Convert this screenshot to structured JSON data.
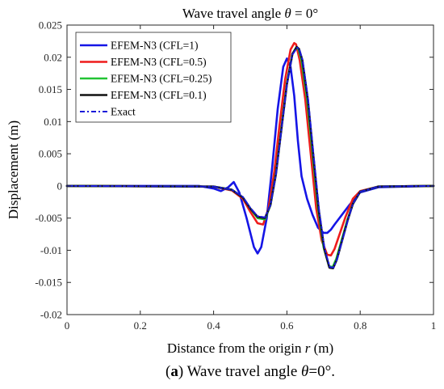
{
  "chart_data": {
    "type": "line",
    "title_prefix": "Wave travel angle ",
    "title_symbol": "θ",
    "title_suffix": " = 0°",
    "xlabel_prefix": "Distance from the origin ",
    "xlabel_symbol": "r",
    "xlabel_suffix": " (m)",
    "ylabel": "Displacement (m)",
    "xlim": [
      0,
      1
    ],
    "ylim": [
      -0.02,
      0.025
    ],
    "xticks": [
      0,
      0.2,
      0.4,
      0.6,
      0.8,
      1
    ],
    "xtick_labels": [
      "0",
      "0.2",
      "0.4",
      "0.6",
      "0.8",
      "1"
    ],
    "yticks": [
      -0.02,
      -0.015,
      -0.01,
      -0.005,
      0,
      0.005,
      0.01,
      0.015,
      0.02,
      0.025
    ],
    "ytick_labels": [
      "-0.02",
      "-0.015",
      "-0.01",
      "-0.005",
      "0",
      "0.005",
      "0.01",
      "0.015",
      "0.02",
      "0.025"
    ],
    "grid": false,
    "legend_position": "top-left",
    "series": [
      {
        "name": "EFEM-N3 (CFL=1)",
        "color": "#1515e6",
        "dash": "solid",
        "x": [
          0,
          0.36,
          0.4,
          0.42,
          0.44,
          0.455,
          0.47,
          0.49,
          0.51,
          0.52,
          0.53,
          0.545,
          0.56,
          0.575,
          0.59,
          0.6,
          0.61,
          0.62,
          0.63,
          0.64,
          0.655,
          0.67,
          0.685,
          0.7,
          0.71,
          0.72,
          0.73,
          0.75,
          0.77,
          0.8,
          0.85,
          1.0
        ],
        "y": [
          0,
          0,
          -0.0004,
          -0.0008,
          -0.0002,
          0.0006,
          -0.001,
          -0.005,
          -0.0095,
          -0.0105,
          -0.0095,
          -0.005,
          0.003,
          0.012,
          0.0185,
          0.0198,
          0.0185,
          0.014,
          0.007,
          0.0015,
          -0.002,
          -0.0045,
          -0.0065,
          -0.0073,
          -0.0073,
          -0.0068,
          -0.006,
          -0.0045,
          -0.003,
          -0.001,
          -0.0002,
          0
        ]
      },
      {
        "name": "EFEM-N3 (CFL=0.5)",
        "color": "#ee1c1c",
        "dash": "solid",
        "x": [
          0,
          0.4,
          0.45,
          0.48,
          0.5,
          0.52,
          0.535,
          0.55,
          0.565,
          0.58,
          0.595,
          0.61,
          0.62,
          0.625,
          0.635,
          0.65,
          0.665,
          0.68,
          0.695,
          0.71,
          0.72,
          0.73,
          0.745,
          0.76,
          0.78,
          0.8,
          0.85,
          1.0
        ],
        "y": [
          0,
          -0.0001,
          -0.0007,
          -0.002,
          -0.004,
          -0.0058,
          -0.006,
          -0.0035,
          0.002,
          0.0095,
          0.0165,
          0.0212,
          0.0222,
          0.022,
          0.0195,
          0.0135,
          0.005,
          -0.0035,
          -0.0085,
          -0.0107,
          -0.0108,
          -0.0098,
          -0.0073,
          -0.0048,
          -0.002,
          -0.0008,
          -0.0001,
          0
        ]
      },
      {
        "name": "EFEM-N3 (CFL=0.25)",
        "color": "#22c434",
        "dash": "solid",
        "x": [
          0,
          0.4,
          0.45,
          0.48,
          0.5,
          0.52,
          0.54,
          0.555,
          0.57,
          0.585,
          0.6,
          0.615,
          0.625,
          0.632,
          0.64,
          0.655,
          0.67,
          0.685,
          0.7,
          0.715,
          0.725,
          0.735,
          0.75,
          0.765,
          0.78,
          0.8,
          0.85,
          1.0
        ],
        "y": [
          0,
          -0.0001,
          -0.0006,
          -0.0018,
          -0.0035,
          -0.005,
          -0.0052,
          -0.003,
          0.002,
          0.009,
          0.016,
          0.0205,
          0.0215,
          0.0212,
          0.0195,
          0.0135,
          0.005,
          -0.0035,
          -0.0095,
          -0.0125,
          -0.0126,
          -0.0113,
          -0.0083,
          -0.0053,
          -0.0028,
          -0.0009,
          -0.0001,
          0
        ]
      },
      {
        "name": "EFEM-N3 (CFL=0.1)",
        "color": "#111111",
        "dash": "solid",
        "x": [
          0,
          0.4,
          0.45,
          0.48,
          0.5,
          0.52,
          0.54,
          0.555,
          0.57,
          0.585,
          0.6,
          0.615,
          0.627,
          0.633,
          0.642,
          0.657,
          0.672,
          0.687,
          0.702,
          0.716,
          0.726,
          0.736,
          0.751,
          0.766,
          0.78,
          0.8,
          0.85,
          1.0
        ],
        "y": [
          0,
          -0.0001,
          -0.0006,
          -0.0018,
          -0.0035,
          -0.0048,
          -0.005,
          -0.003,
          0.0018,
          0.0088,
          0.0158,
          0.0205,
          0.0216,
          0.0213,
          0.0196,
          0.0135,
          0.0048,
          -0.0038,
          -0.0098,
          -0.0127,
          -0.0128,
          -0.0115,
          -0.0084,
          -0.0053,
          -0.0028,
          -0.0009,
          -0.0001,
          0
        ]
      },
      {
        "name": "Exact",
        "color": "#1a1ad9",
        "dash": "dashdot",
        "x": [
          0,
          0.4,
          0.45,
          0.48,
          0.5,
          0.52,
          0.54,
          0.555,
          0.57,
          0.585,
          0.6,
          0.615,
          0.628,
          0.634,
          0.643,
          0.658,
          0.673,
          0.688,
          0.703,
          0.717,
          0.727,
          0.737,
          0.752,
          0.767,
          0.78,
          0.8,
          0.85,
          1.0
        ],
        "y": [
          0,
          -0.0001,
          -0.0006,
          -0.0017,
          -0.0034,
          -0.0047,
          -0.0049,
          -0.003,
          0.0017,
          0.0087,
          0.0157,
          0.0204,
          0.0215,
          0.0212,
          0.0195,
          0.0134,
          0.0047,
          -0.0038,
          -0.0098,
          -0.0126,
          -0.0127,
          -0.0114,
          -0.0083,
          -0.0052,
          -0.0028,
          -0.0009,
          -0.0001,
          0
        ]
      }
    ]
  },
  "caption": {
    "letter": "a",
    "text_prefix": " Wave travel angle  ",
    "symbol": "θ",
    "text_suffix": "=0°."
  }
}
